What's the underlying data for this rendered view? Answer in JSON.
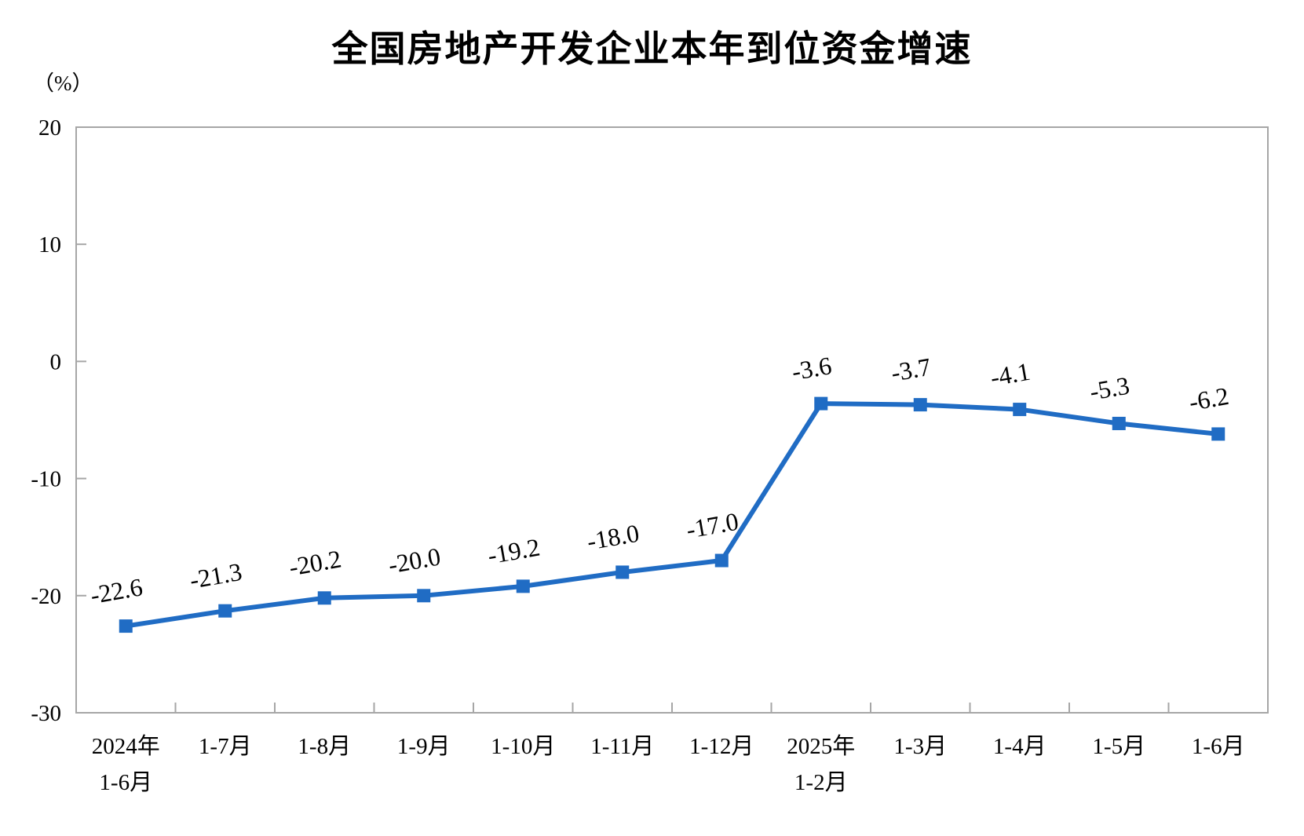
{
  "page": {
    "background_color": "#ffffff"
  },
  "chart_data": {
    "type": "line",
    "title": "全国房地产开发企业本年到位资金增速",
    "unit_label": "（%）",
    "categories": [
      [
        "2024年",
        "1-6月"
      ],
      [
        "1-7月"
      ],
      [
        "1-8月"
      ],
      [
        "1-9月"
      ],
      [
        "1-10月"
      ],
      [
        "1-11月"
      ],
      [
        "1-12月"
      ],
      [
        "2025年",
        "1-2月"
      ],
      [
        "1-3月"
      ],
      [
        "1-4月"
      ],
      [
        "1-5月"
      ],
      [
        "1-6月"
      ]
    ],
    "values": [
      -22.6,
      -21.3,
      -20.2,
      -20.0,
      -19.2,
      -18.0,
      -17.0,
      -3.6,
      -3.7,
      -4.1,
      -5.3,
      -6.2
    ],
    "value_labels": [
      "-22.6",
      "-21.3",
      "-20.2",
      "-20.0",
      "-19.2",
      "-18.0",
      "-17.0",
      "-3.6",
      "-3.7",
      "-4.1",
      "-5.3",
      "-6.2"
    ],
    "ylim": [
      -30,
      20
    ],
    "yticks": [
      20,
      10,
      0,
      -10,
      -20,
      -30
    ],
    "ytick_labels": [
      "20",
      "10",
      "0",
      "-10",
      "-20",
      "-30"
    ],
    "xlabel": "",
    "ylabel": "（%）",
    "grid": false,
    "legend": "none",
    "marker": "square",
    "line_color": "#206CC4",
    "axis_color": "#A6A6A6",
    "text_color": "#000000"
  }
}
